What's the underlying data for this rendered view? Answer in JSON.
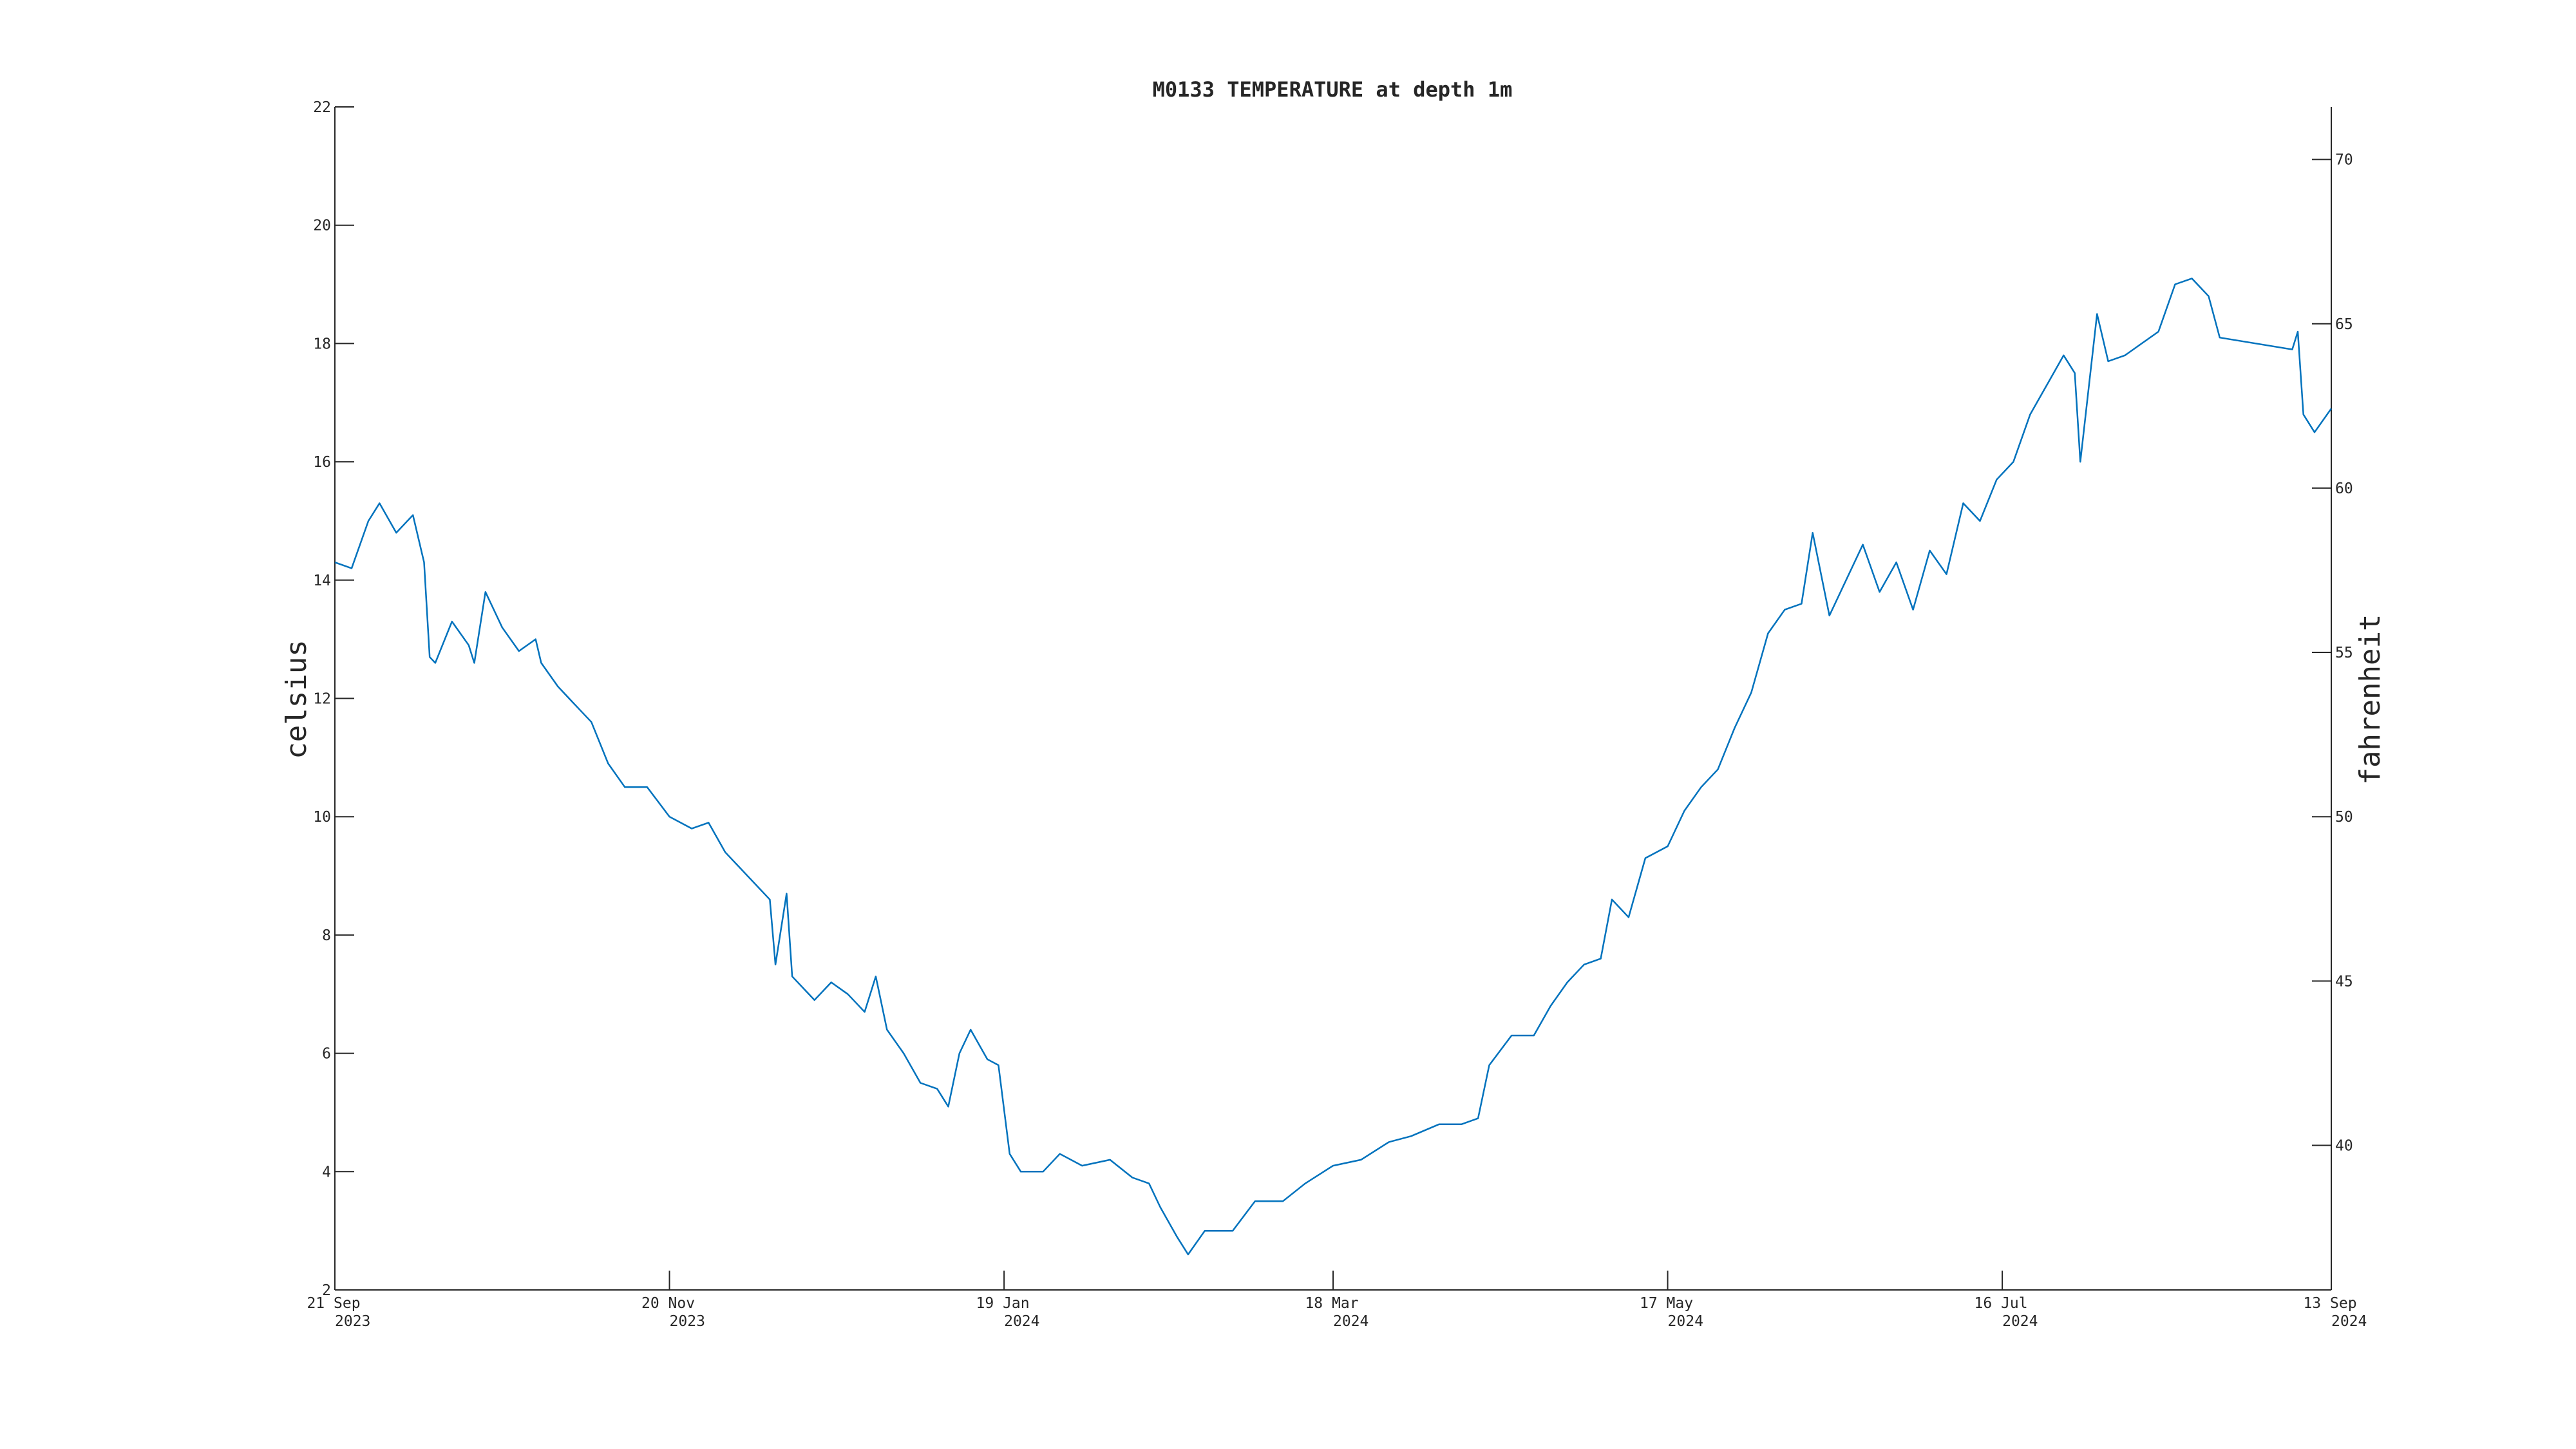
{
  "chart_data": {
    "type": "line",
    "title": "M0133 TEMPERATURE at depth 1m",
    "y_label": "celsius",
    "y2_label": "fahrenheit",
    "color": "#0072bd",
    "x": [
      "2023-09-21",
      "2023-09-24",
      "2023-09-27",
      "2023-09-29",
      "2023-10-02",
      "2023-10-05",
      "2023-10-07",
      "2023-10-08",
      "2023-10-09",
      "2023-10-12",
      "2023-10-15",
      "2023-10-16",
      "2023-10-18",
      "2023-10-21",
      "2023-10-24",
      "2023-10-27",
      "2023-10-28",
      "2023-10-31",
      "2023-11-03",
      "2023-11-06",
      "2023-11-09",
      "2023-11-12",
      "2023-11-16",
      "2023-11-20",
      "2023-11-24",
      "2023-11-27",
      "2023-11-30",
      "2023-12-04",
      "2023-12-08",
      "2023-12-09",
      "2023-12-11",
      "2023-12-12",
      "2023-12-16",
      "2023-12-19",
      "2023-12-22",
      "2023-12-25",
      "2023-12-27",
      "2023-12-29",
      "2024-01-01",
      "2024-01-04",
      "2024-01-07",
      "2024-01-09",
      "2024-01-11",
      "2024-01-13",
      "2024-01-16",
      "2024-01-18",
      "2024-01-20",
      "2024-01-22",
      "2024-01-26",
      "2024-01-29",
      "2024-02-02",
      "2024-02-07",
      "2024-02-11",
      "2024-02-14",
      "2024-02-16",
      "2024-02-19",
      "2024-02-21",
      "2024-02-24",
      "2024-02-29",
      "2024-03-04",
      "2024-03-09",
      "2024-03-13",
      "2024-03-18",
      "2024-03-23",
      "2024-03-28",
      "2024-04-01",
      "2024-04-06",
      "2024-04-10",
      "2024-04-13",
      "2024-04-15",
      "2024-04-19",
      "2024-04-23",
      "2024-04-26",
      "2024-04-29",
      "2024-05-02",
      "2024-05-05",
      "2024-05-07",
      "2024-05-10",
      "2024-05-13",
      "2024-05-17",
      "2024-05-20",
      "2024-05-23",
      "2024-05-26",
      "2024-05-29",
      "2024-06-01",
      "2024-06-04",
      "2024-06-07",
      "2024-06-10",
      "2024-06-12",
      "2024-06-15",
      "2024-06-18",
      "2024-06-21",
      "2024-06-24",
      "2024-06-27",
      "2024-06-30",
      "2024-07-03",
      "2024-07-06",
      "2024-07-09",
      "2024-07-12",
      "2024-07-15",
      "2024-07-18",
      "2024-07-21",
      "2024-07-24",
      "2024-07-27",
      "2024-07-29",
      "2024-07-30",
      "2024-08-02",
      "2024-08-04",
      "2024-08-07",
      "2024-08-10",
      "2024-08-13",
      "2024-08-16",
      "2024-08-19",
      "2024-08-22",
      "2024-08-24",
      "2024-09-06",
      "2024-09-07",
      "2024-09-08",
      "2024-09-10",
      "2024-09-13"
    ],
    "values": [
      14.3,
      14.2,
      15.0,
      15.3,
      14.8,
      15.1,
      14.3,
      12.7,
      12.6,
      13.3,
      12.9,
      12.6,
      13.8,
      13.2,
      12.8,
      13.0,
      12.6,
      12.2,
      11.9,
      11.6,
      10.9,
      10.5,
      10.5,
      10.0,
      9.8,
      9.9,
      9.4,
      9.0,
      8.6,
      7.5,
      8.7,
      7.3,
      6.9,
      7.2,
      7.0,
      6.7,
      7.3,
      6.4,
      6.0,
      5.5,
      5.4,
      5.1,
      6.0,
      6.4,
      5.9,
      5.8,
      4.3,
      4.0,
      4.0,
      4.3,
      4.1,
      4.2,
      3.9,
      3.8,
      3.4,
      2.9,
      2.6,
      3.0,
      3.0,
      3.5,
      3.5,
      3.8,
      4.1,
      4.2,
      4.5,
      4.6,
      4.8,
      4.8,
      4.9,
      5.8,
      6.3,
      6.3,
      6.8,
      7.2,
      7.5,
      7.6,
      8.6,
      8.3,
      9.3,
      9.5,
      10.1,
      10.5,
      10.8,
      11.5,
      12.1,
      13.1,
      13.5,
      13.6,
      14.8,
      13.4,
      14.0,
      14.6,
      13.8,
      14.3,
      13.5,
      14.5,
      14.1,
      15.3,
      15.0,
      15.7,
      16.0,
      16.8,
      17.3,
      17.8,
      17.5,
      16.0,
      18.5,
      17.7,
      17.8,
      18.0,
      18.2,
      19.0,
      19.1,
      18.8,
      18.1,
      17.9,
      18.2,
      16.8,
      16.5,
      16.9
    ],
    "xlim": [
      "2023-09-21",
      "2024-09-13"
    ],
    "xticks": [
      {
        "value": "2023-09-21",
        "label": [
          "21 Sep",
          "2023"
        ]
      },
      {
        "value": "2023-11-20",
        "label": [
          "20 Nov",
          "2023"
        ]
      },
      {
        "value": "2024-01-19",
        "label": [
          "19 Jan",
          "2024"
        ]
      },
      {
        "value": "2024-03-18",
        "label": [
          "18 Mar",
          "2024"
        ]
      },
      {
        "value": "2024-05-17",
        "label": [
          "17 May",
          "2024"
        ]
      },
      {
        "value": "2024-07-16",
        "label": [
          "16 Jul",
          "2024"
        ]
      },
      {
        "value": "2024-09-13",
        "label": [
          "13 Sep",
          "2024"
        ]
      }
    ],
    "ylim": [
      2,
      22
    ],
    "yticks": [
      2,
      4,
      6,
      8,
      10,
      12,
      14,
      16,
      18,
      20,
      22
    ],
    "y2lim": [
      35.6,
      71.6
    ],
    "y2ticks": [
      40,
      45,
      50,
      55,
      60,
      65,
      70
    ]
  }
}
